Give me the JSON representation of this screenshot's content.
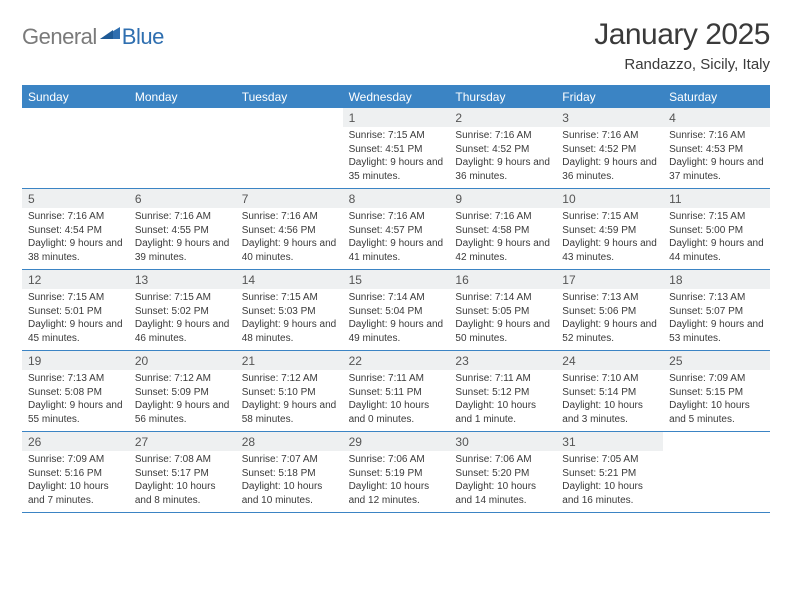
{
  "colors": {
    "header_bg": "#3b84c4",
    "header_text": "#ffffff",
    "daynum_bg": "#eef0f1",
    "logo_gray": "#7a7a7a",
    "logo_blue": "#2f6fb0",
    "text": "#3a3a3a",
    "divider": "#3b84c4",
    "background": "#ffffff"
  },
  "logo": {
    "part1": "General",
    "part2": "Blue"
  },
  "title": "January 2025",
  "subtitle": "Randazzo, Sicily, Italy",
  "day_names": [
    "Sunday",
    "Monday",
    "Tuesday",
    "Wednesday",
    "Thursday",
    "Friday",
    "Saturday"
  ],
  "weeks": [
    [
      {
        "n": "",
        "sr": "",
        "ss": "",
        "dl": ""
      },
      {
        "n": "",
        "sr": "",
        "ss": "",
        "dl": ""
      },
      {
        "n": "",
        "sr": "",
        "ss": "",
        "dl": ""
      },
      {
        "n": "1",
        "sr": "Sunrise: 7:15 AM",
        "ss": "Sunset: 4:51 PM",
        "dl": "Daylight: 9 hours and 35 minutes."
      },
      {
        "n": "2",
        "sr": "Sunrise: 7:16 AM",
        "ss": "Sunset: 4:52 PM",
        "dl": "Daylight: 9 hours and 36 minutes."
      },
      {
        "n": "3",
        "sr": "Sunrise: 7:16 AM",
        "ss": "Sunset: 4:52 PM",
        "dl": "Daylight: 9 hours and 36 minutes."
      },
      {
        "n": "4",
        "sr": "Sunrise: 7:16 AM",
        "ss": "Sunset: 4:53 PM",
        "dl": "Daylight: 9 hours and 37 minutes."
      }
    ],
    [
      {
        "n": "5",
        "sr": "Sunrise: 7:16 AM",
        "ss": "Sunset: 4:54 PM",
        "dl": "Daylight: 9 hours and 38 minutes."
      },
      {
        "n": "6",
        "sr": "Sunrise: 7:16 AM",
        "ss": "Sunset: 4:55 PM",
        "dl": "Daylight: 9 hours and 39 minutes."
      },
      {
        "n": "7",
        "sr": "Sunrise: 7:16 AM",
        "ss": "Sunset: 4:56 PM",
        "dl": "Daylight: 9 hours and 40 minutes."
      },
      {
        "n": "8",
        "sr": "Sunrise: 7:16 AM",
        "ss": "Sunset: 4:57 PM",
        "dl": "Daylight: 9 hours and 41 minutes."
      },
      {
        "n": "9",
        "sr": "Sunrise: 7:16 AM",
        "ss": "Sunset: 4:58 PM",
        "dl": "Daylight: 9 hours and 42 minutes."
      },
      {
        "n": "10",
        "sr": "Sunrise: 7:15 AM",
        "ss": "Sunset: 4:59 PM",
        "dl": "Daylight: 9 hours and 43 minutes."
      },
      {
        "n": "11",
        "sr": "Sunrise: 7:15 AM",
        "ss": "Sunset: 5:00 PM",
        "dl": "Daylight: 9 hours and 44 minutes."
      }
    ],
    [
      {
        "n": "12",
        "sr": "Sunrise: 7:15 AM",
        "ss": "Sunset: 5:01 PM",
        "dl": "Daylight: 9 hours and 45 minutes."
      },
      {
        "n": "13",
        "sr": "Sunrise: 7:15 AM",
        "ss": "Sunset: 5:02 PM",
        "dl": "Daylight: 9 hours and 46 minutes."
      },
      {
        "n": "14",
        "sr": "Sunrise: 7:15 AM",
        "ss": "Sunset: 5:03 PM",
        "dl": "Daylight: 9 hours and 48 minutes."
      },
      {
        "n": "15",
        "sr": "Sunrise: 7:14 AM",
        "ss": "Sunset: 5:04 PM",
        "dl": "Daylight: 9 hours and 49 minutes."
      },
      {
        "n": "16",
        "sr": "Sunrise: 7:14 AM",
        "ss": "Sunset: 5:05 PM",
        "dl": "Daylight: 9 hours and 50 minutes."
      },
      {
        "n": "17",
        "sr": "Sunrise: 7:13 AM",
        "ss": "Sunset: 5:06 PM",
        "dl": "Daylight: 9 hours and 52 minutes."
      },
      {
        "n": "18",
        "sr": "Sunrise: 7:13 AM",
        "ss": "Sunset: 5:07 PM",
        "dl": "Daylight: 9 hours and 53 minutes."
      }
    ],
    [
      {
        "n": "19",
        "sr": "Sunrise: 7:13 AM",
        "ss": "Sunset: 5:08 PM",
        "dl": "Daylight: 9 hours and 55 minutes."
      },
      {
        "n": "20",
        "sr": "Sunrise: 7:12 AM",
        "ss": "Sunset: 5:09 PM",
        "dl": "Daylight: 9 hours and 56 minutes."
      },
      {
        "n": "21",
        "sr": "Sunrise: 7:12 AM",
        "ss": "Sunset: 5:10 PM",
        "dl": "Daylight: 9 hours and 58 minutes."
      },
      {
        "n": "22",
        "sr": "Sunrise: 7:11 AM",
        "ss": "Sunset: 5:11 PM",
        "dl": "Daylight: 10 hours and 0 minutes."
      },
      {
        "n": "23",
        "sr": "Sunrise: 7:11 AM",
        "ss": "Sunset: 5:12 PM",
        "dl": "Daylight: 10 hours and 1 minute."
      },
      {
        "n": "24",
        "sr": "Sunrise: 7:10 AM",
        "ss": "Sunset: 5:14 PM",
        "dl": "Daylight: 10 hours and 3 minutes."
      },
      {
        "n": "25",
        "sr": "Sunrise: 7:09 AM",
        "ss": "Sunset: 5:15 PM",
        "dl": "Daylight: 10 hours and 5 minutes."
      }
    ],
    [
      {
        "n": "26",
        "sr": "Sunrise: 7:09 AM",
        "ss": "Sunset: 5:16 PM",
        "dl": "Daylight: 10 hours and 7 minutes."
      },
      {
        "n": "27",
        "sr": "Sunrise: 7:08 AM",
        "ss": "Sunset: 5:17 PM",
        "dl": "Daylight: 10 hours and 8 minutes."
      },
      {
        "n": "28",
        "sr": "Sunrise: 7:07 AM",
        "ss": "Sunset: 5:18 PM",
        "dl": "Daylight: 10 hours and 10 minutes."
      },
      {
        "n": "29",
        "sr": "Sunrise: 7:06 AM",
        "ss": "Sunset: 5:19 PM",
        "dl": "Daylight: 10 hours and 12 minutes."
      },
      {
        "n": "30",
        "sr": "Sunrise: 7:06 AM",
        "ss": "Sunset: 5:20 PM",
        "dl": "Daylight: 10 hours and 14 minutes."
      },
      {
        "n": "31",
        "sr": "Sunrise: 7:05 AM",
        "ss": "Sunset: 5:21 PM",
        "dl": "Daylight: 10 hours and 16 minutes."
      },
      {
        "n": "",
        "sr": "",
        "ss": "",
        "dl": ""
      }
    ]
  ]
}
